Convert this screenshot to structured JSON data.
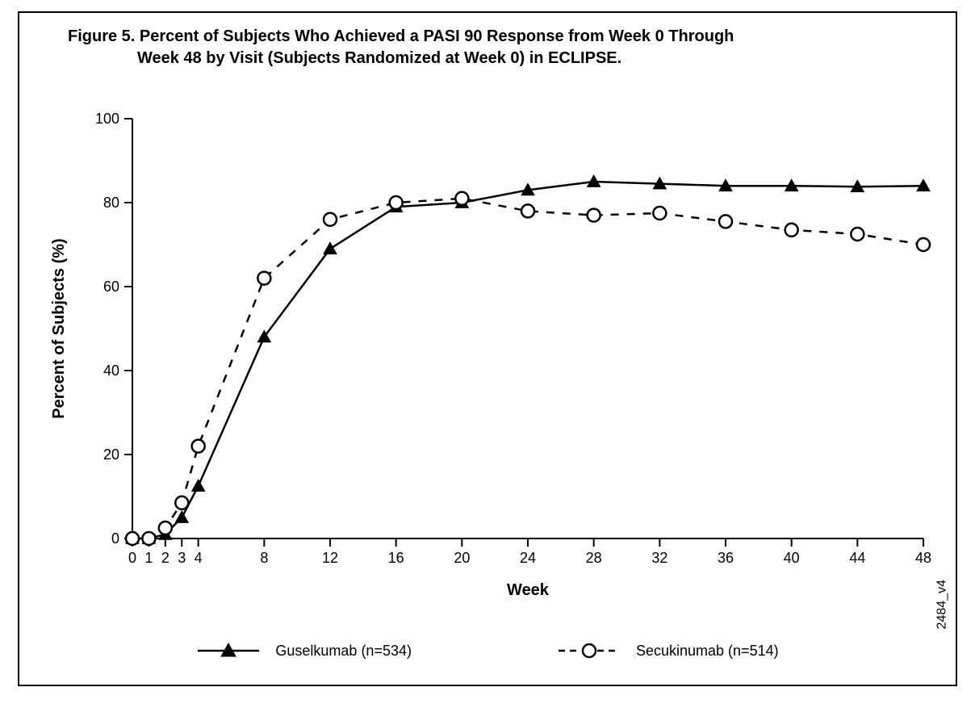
{
  "figure": {
    "title_line1": "Figure 5. Percent of Subjects Who Achieved a PASI 90 Response from Week 0 Through",
    "title_line2": "Week 48 by Visit (Subjects Randomized at Week 0) in ECLIPSE.",
    "title_fontsize": 20,
    "title_fontweight": 700,
    "side_label": "2484_v4",
    "frame_color": "#000000",
    "background_color": "#ffffff"
  },
  "chart": {
    "type": "line",
    "x_axis": {
      "title": "Week",
      "ticks": [
        0,
        1,
        2,
        3,
        4,
        8,
        12,
        16,
        20,
        24,
        28,
        32,
        36,
        40,
        44,
        48
      ],
      "xlim": [
        0,
        48
      ],
      "label_fontsize": 18,
      "title_fontsize": 20
    },
    "y_axis": {
      "title": "Percent of Subjects (%)",
      "ticks": [
        0,
        20,
        40,
        60,
        80,
        100
      ],
      "ylim": [
        0,
        100
      ],
      "label_fontsize": 18,
      "title_fontsize": 20
    },
    "axis_color": "#000000",
    "grid": false,
    "line_width": 2.5,
    "marker_size": 8,
    "series": [
      {
        "id": "guselkumab",
        "label": "Guselkumab (n=534)",
        "line_style": "solid",
        "marker": "triangle-filled",
        "color": "#000000",
        "x": [
          0,
          1,
          2,
          3,
          4,
          8,
          12,
          16,
          20,
          24,
          28,
          32,
          36,
          40,
          44,
          48
        ],
        "y": [
          0,
          0,
          1,
          5,
          12.5,
          48,
          69,
          79,
          80,
          83,
          85,
          84.5,
          84,
          84,
          83.8,
          84
        ]
      },
      {
        "id": "secukinumab",
        "label": "Secukinumab (n=514)",
        "line_style": "dashed",
        "dash_pattern": "10 10",
        "marker": "circle-open",
        "color": "#000000",
        "marker_fill": "#ffffff",
        "x": [
          0,
          1,
          2,
          3,
          4,
          8,
          12,
          16,
          20,
          24,
          28,
          32,
          36,
          40,
          44,
          48
        ],
        "y": [
          0,
          0,
          2.5,
          8.5,
          22,
          62,
          76,
          80,
          81,
          78,
          77,
          77.5,
          75.5,
          73.5,
          72.5,
          70
        ]
      }
    ]
  },
  "legend": {
    "items": [
      {
        "label": "Guselkumab (n=534)",
        "series": "guselkumab"
      },
      {
        "label": "Secukinumab (n=514)",
        "series": "secukinumab"
      }
    ],
    "fontsize": 18
  }
}
